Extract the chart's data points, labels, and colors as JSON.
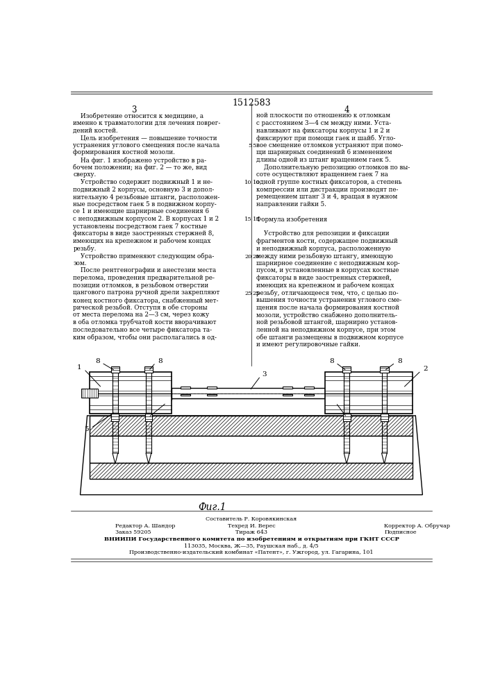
{
  "page_title": "1512583",
  "col_left_num": "3",
  "col_right_num": "4",
  "col_left_text": [
    "    Изобретение относится к медицине, а",
    "именно к травматологии для лечения поврег-",
    "дений костей.",
    "    Цель изобретения — повышение точности",
    "устранения углового смещения после начала",
    "формирования костной мозоли.",
    "    На фиг. 1 изображено устройство в ра-",
    "бочем положении; на фиг. 2 — то же, вид",
    "сверху.",
    "    Устройство содержит подвижный 1 и не-",
    "подвижный 2 корпусы, основную 3 и допол-",
    "нительную 4 резьбовые штанги, расположен-",
    "ные посредством гаек 5 в подвижном корпу-",
    "се 1 и имеющие шарнирные соединения 6",
    "с неподвижным корпусом 2. В корпусах 1 и 2",
    "установлены посредством гаек 7 костные",
    "фиксаторы в виде заостренных стержней 8,",
    "имеющих на крепежном и рабочем концах",
    "резьбу.",
    "    Устройство применяют следующим обра-",
    "зом.",
    "    После рентгенографии и анестезии места",
    "перелома, проведения предварительной ре-",
    "позиции отломков, в резьбовом отверстии",
    "цангового патрона ручной дрели закрепляют",
    "конец костного фиксатора, снабженный мет-",
    "рической резьбой. Отступя в обе стороны",
    "от места перелома на 2—3 см, через кожу",
    "в оба отломка трубчатой кости вворачивают",
    "последовательно все четыре фиксатора та-",
    "ким образом, чтобы они располагались в од-"
  ],
  "col_right_text": [
    "ной плоскости по отношению к отломкам",
    "с расстоянием 3—4 см между ними. Уста-",
    "навливают на фиксаторы корпусы 1 и 2 и",
    "фиксируют при помощи гаек и шайб. Угло-",
    "вое смещение отломков устраняют при помо-",
    "щи шарнирных соединений 6 изменением",
    "длины одной из штанг вращением гаек 5.",
    "    Дополнительную репозицию отломков по вы-",
    "соте осуществляют вращением гаек 7 на",
    "одной группе костных фиксаторов, а степень",
    "компрессии или дистракции производят пе-",
    "ремещением штанг 3 и 4, вращая в нужном",
    "направлении гайки 5.",
    "",
    "Формула изобретения",
    "",
    "    Устройство для репозиции и фиксации",
    "фрагментов кости, содержащее подвижный",
    "и неподвижный корпуса, расположенную",
    "между ними резьбовую штангу, имеющую",
    "шарнирное соединение с неподвижным кор-",
    "пусом, и установленные в корпусах костные",
    "фиксаторы в виде заостренных стержней,",
    "имеющих на крепежном и рабочем концах",
    "резьбу, отличающееся тем, что, с целью по-",
    "вышения точности устранения углового сме-",
    "щения после начала формирования костной",
    "мозоли, устройство снабжено дополнитель-",
    "ной резьбовой штангой, шарнирно установ-",
    "ленной на неподвижном корпусе, при этом",
    "обе штанги размещены в подвижном корпусе",
    "и имеют регулировочные гайки."
  ],
  "line_numbers": [
    "5",
    "10",
    "15",
    "20",
    "25"
  ],
  "line_number_rows": [
    4,
    9,
    14,
    19,
    24
  ],
  "fig_caption": "Фиг.1",
  "footer_line0": "Составитель Р. Коровякинская",
  "footer_line1_left": "Редактор А. Шандор",
  "footer_line1_mid": "Техред И. Верес",
  "footer_line1_right": "Корректор А. Обручар",
  "footer_line2_left": "Заказ 59205",
  "footer_line2_mid": "Тираж 643",
  "footer_line2_right": "Подписное",
  "footer_line3": "ВНИИПИ Государственного комитета по изобретениям и открытиям при ГКНТ СССР",
  "footer_line4": "113035, Москва, Ж—35, Раушская наб., д. 4/5",
  "footer_line5": "Производственно-издательский комбинат «Патент», г. Ужгород, ул. Гагарина, 101",
  "bg_color": "#ffffff",
  "text_color": "#000000"
}
